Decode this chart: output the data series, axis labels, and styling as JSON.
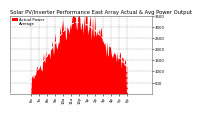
{
  "title": "Solar PV/Inverter Performance East Array Actual & Avg Power Output",
  "legend_label1": "Actual Power",
  "legend_label2": "Average",
  "background_color": "#ffffff",
  "plot_bg_color": "#ffffff",
  "grid_color": "#888888",
  "fill_color": "#ff0000",
  "avg_line_color": "#ffffff",
  "y_min": 0,
  "y_max": 3500,
  "y_ticks": [
    500,
    1000,
    1500,
    2000,
    2500,
    3000,
    3500
  ],
  "title_fontsize": 3.8,
  "tick_fontsize": 2.8,
  "legend_fontsize": 2.8
}
